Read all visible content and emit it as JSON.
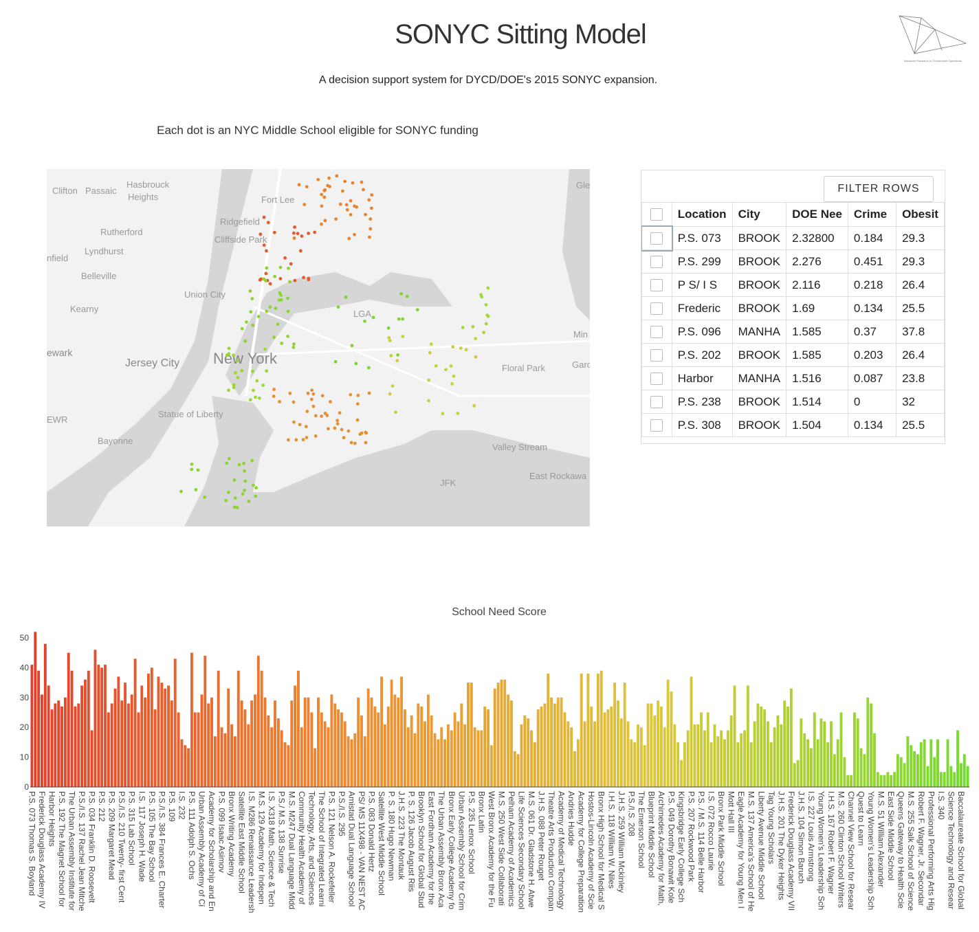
{
  "header": {
    "title": "SONYC Sitting Model",
    "subtitle": "A decision support system for DYCD/DOE's 2015 SONYC expansion.",
    "logo_caption": "Advanced Research in Government Operations"
  },
  "map": {
    "caption": "Each dot is an NYC Middle School eligible for SONYC funding",
    "labels": [
      "Clifton",
      "Passaic",
      "Hasbrouck",
      "Heights",
      "Fort Lee",
      "Ridgefield",
      "Rutherford",
      "Cliffside Park",
      "Lyndhurst",
      "nfield",
      "Belleville",
      "Union City",
      "Kearny",
      "LGA",
      "ewark",
      "Jersey City",
      "New York",
      "Floral Park",
      "Statue of Liberty",
      "Bayonne",
      "Valley Stream",
      "JFK",
      "East Rockawa",
      "EWR",
      "Gle",
      "Min",
      "Garc"
    ]
  },
  "table": {
    "button": "FILTER ROWS",
    "columns": [
      "Location",
      "City",
      "DOE Nee",
      "Crime",
      "Obesit"
    ],
    "rows": [
      [
        "P.S. 073",
        "BROOK",
        "2.32800",
        "0.184",
        "29.3"
      ],
      [
        "P.S. 299",
        "BROOK",
        "2.276",
        "0.451",
        "29.3"
      ],
      [
        "P S/ I S",
        "BROOK",
        "2.116",
        "0.218",
        "26.4"
      ],
      [
        "Frederic",
        "BROOK",
        "1.69",
        "0.134",
        "25.5"
      ],
      [
        "P.S. 096",
        "MANHA",
        "1.585",
        "0.37",
        "37.8"
      ],
      [
        "P.S. 202",
        "BROOK",
        "1.585",
        "0.203",
        "26.4"
      ],
      [
        "Harbor",
        "MANHA",
        "1.516",
        "0.087",
        "23.8"
      ],
      [
        "P.S. 238",
        "BROOK",
        "1.514",
        "0",
        "32"
      ],
      [
        "P.S. 308",
        "BROOK",
        "1.504",
        "0.134",
        "25.5"
      ]
    ]
  },
  "chart_data": {
    "type": "bar",
    "title": "School Need Score",
    "ylim": [
      0,
      53
    ],
    "yticks": [
      0,
      10,
      20,
      30,
      40,
      50
    ],
    "grid": false,
    "colorscale": [
      "#e3402b",
      "#ef8a30",
      "#dcc73b",
      "#72dc2c"
    ],
    "categories": [
      "P.S. 073 Thomas S. Boyland",
      null,
      null,
      "Frederick Douglass Academy IV",
      null,
      null,
      "Harbor Heights",
      null,
      null,
      "P.S. 192 The Magnet School for",
      null,
      null,
      "The Urban Assembly Institute for",
      null,
      null,
      "P.S./I.S. 137 Rachel Jean Mitche",
      null,
      null,
      "P.S. 034 Franklin D. Roosevelt",
      null,
      null,
      "P.S. 212",
      null,
      null,
      "P.S. 209 Margaret Mead",
      null,
      null,
      "P.S./I.S. 210 Twenty- first Cent",
      null,
      null,
      "P.S. 315 Lab School",
      null,
      null,
      "I.S. 117 Joseph H. Wade",
      null,
      null,
      "P.S. 105 The Bay School",
      null,
      null,
      "P.S./I.S. 384 Frances E. Charter",
      null,
      null,
      "P.S. 109",
      null,
      null,
      "I.S. 232",
      null,
      null,
      "P.S. 111 Adolph S. Ochs",
      null,
      null,
      "Urban Assembly Academy of Ci",
      null,
      null,
      "Academy for Scholarship and En",
      null,
      null,
      "P.S. 099 Isaac Asimov",
      null,
      null,
      "Bronx Writing Academy",
      null,
      null,
      "Satellite East Middle School",
      null,
      null,
      "I.S. M286 Renaissance Leadersh",
      null,
      null,
      "M.S. 129 Academy for Indepen",
      null,
      null,
      "I.S. X318 Math, Science & Tech",
      null,
      null,
      "P.S./ M.S. 138 Sunrise",
      null,
      null,
      "M.S. M247 Dual Language Midd",
      null,
      null,
      "Community Health Academy of",
      null,
      null,
      "Technology, Arts, and Sciences",
      null,
      null,
      "The School of Integrated Learni",
      null,
      null,
      "P.S. 121 Nelson A. Rockefeller",
      null,
      null,
      "P.S./I.S. 295",
      null,
      null,
      "Amistad Dual Language School",
      null,
      null,
      "PS/ MS 11X498 - VAN NEST AC",
      null,
      null,
      "P.S. 083 Donald Hertz",
      null,
      null,
      "Satellite West Middle School",
      null,
      null,
      "P. S. 180 Hugo Newman",
      null,
      null,
      "J.H.S. 223 The Montauk",
      null,
      null,
      "P. S. 126 Jacob August Riis",
      null,
      null,
      "Brooklyn School for Global Stud",
      null,
      null,
      "East Fordham Academy for the",
      null,
      null,
      "The Urban Assembly Bronx Aca",
      null,
      null,
      "Bronx Early College Academy fo",
      null,
      null,
      "Urban Assembly School for Crim",
      null,
      null,
      "P.S. 235 Lenox School",
      null,
      null,
      "Bronx Latin",
      null,
      null,
      "West Bronx Academy for the Fu",
      null,
      null,
      "M.S. 250 West Side Collaborati",
      null,
      null,
      "Pelham Academy of Academics",
      null,
      null,
      "Life Sciences Secondary School",
      null,
      null,
      "M.S. 061 Dr. Gladstone H. Atwe",
      null,
      null,
      "J.H.S. 088 Peter Rouget",
      null,
      null,
      "Theatre Arts Production Compan",
      null,
      null,
      "Academy of Medical Technology",
      null,
      null,
      "Andries Hudde",
      null,
      null,
      "Academy for College Preparation",
      null,
      null,
      "Hostos-Lincoln Academy of Scie",
      null,
      null,
      "Bronx High School for Medical S",
      null,
      null,
      "I.H.S. 118 William W. Niles",
      null,
      null,
      "J.H.S. 259 William Mckinley",
      null,
      null,
      "P.S./I.S. 208",
      null,
      null,
      "The Emerson School",
      null,
      null,
      "Blueprint Middle School",
      null,
      null,
      "Archimedes Academy for Math,",
      null,
      null,
      "P.S. 049 Dorothy Bonawit Kole",
      null,
      null,
      "Kingsbridge Early College Sch",
      null,
      null,
      "P.S. 207 Rockwood Park",
      null,
      null,
      "P.S. / M.S. 114 Belle Harbor",
      null,
      null,
      "I.S. 072 Rocco Laurie",
      null,
      null,
      "Bronx Park Middle School",
      null,
      null,
      "Mott Hall III",
      null,
      null,
      "Eagle Academy for Young Men I",
      null,
      null,
      "M.S. 137 America's School of He",
      null,
      null,
      "Liberty Avenue Middle School",
      null,
      null,
      "Tag Young Scholars",
      null,
      null,
      "J.H.S. 201 The Dyker Heights",
      null,
      null,
      "Frederick Douglass Academy VII",
      null,
      null,
      "J.H.S. 104 Simon Baruch",
      null,
      null,
      "I.S. 227 Louis Armstrong",
      null,
      null,
      "Young Women's Leadership Sch",
      null,
      null,
      "I.H.S. 167 Robert F. Wagner",
      null,
      null,
      "M.S. 260 Clinton School Writers",
      null,
      null,
      "Channel View School for Resear",
      null,
      null,
      "Quest to Learn",
      null,
      null,
      "Young Women's Leadership Sch",
      null,
      null,
      "M.S. 51 William Alexander",
      null,
      null,
      "East Side Middle School",
      null,
      null,
      "Queens Gateway to Health Scie",
      null,
      null,
      "M.S. 255 Salk School of Science",
      null,
      null,
      "Robert F. Wagner, Jr. Secondar",
      null,
      null,
      "Professional Performing Arts Hig",
      null,
      null,
      "I.S. 340",
      null,
      null,
      "Science Technology and Resear",
      null,
      null,
      "Baccalaureate School for Global",
      null,
      null
    ],
    "values": [
      41,
      52,
      39,
      31,
      48,
      34,
      26,
      28,
      29,
      27,
      30,
      45,
      39,
      27,
      28,
      34,
      36,
      39,
      19,
      46,
      41,
      40,
      41,
      25,
      28,
      33,
      37,
      29,
      35,
      28,
      31,
      43,
      25,
      34,
      30,
      38,
      40,
      26,
      37,
      35,
      33,
      34,
      29,
      43,
      25,
      16,
      14,
      13,
      45,
      25,
      25,
      31,
      44,
      28,
      30,
      17,
      39,
      20,
      18,
      33,
      21,
      17,
      39,
      29,
      26,
      21,
      29,
      31,
      44,
      39,
      30,
      24,
      20,
      29,
      23,
      19,
      15,
      14,
      29,
      34,
      39,
      20,
      30,
      30,
      25,
      13,
      30,
      25,
      22,
      20,
      31,
      28,
      26,
      25,
      22,
      17,
      16,
      18,
      30,
      24,
      17,
      33,
      30,
      27,
      25,
      37,
      21,
      27,
      36,
      31,
      30,
      37,
      26,
      20,
      24,
      18,
      28,
      27,
      22,
      31,
      24,
      18,
      16,
      20,
      16,
      21,
      19,
      25,
      22,
      28,
      21,
      35,
      35,
      20,
      19,
      19,
      27,
      26,
      14,
      33,
      35,
      36,
      36,
      31,
      29,
      12,
      11,
      21,
      24,
      23,
      19,
      15,
      26,
      27,
      28,
      38,
      30,
      28,
      30,
      30,
      25,
      22,
      20,
      12,
      16,
      38,
      22,
      38,
      27,
      22,
      38,
      39,
      25,
      26,
      27,
      35,
      29,
      23,
      35,
      22,
      16,
      15,
      21,
      20,
      14,
      28,
      28,
      24,
      29,
      27,
      20,
      36,
      32,
      21,
      15,
      9,
      15,
      19,
      37,
      21,
      21,
      25,
      19,
      25,
      15,
      21,
      17,
      19,
      16,
      19,
      24,
      34,
      15,
      18,
      19,
      34,
      15,
      22,
      28,
      27,
      26,
      22,
      15,
      20,
      24,
      21,
      29,
      27,
      33,
      8,
      9,
      23,
      18,
      16,
      13,
      25,
      16,
      23,
      22,
      15,
      22,
      11,
      16,
      25,
      10,
      4,
      4,
      25,
      23,
      13,
      11,
      30,
      28,
      18,
      5,
      4,
      4,
      5,
      4,
      5,
      11,
      10,
      8,
      17,
      14,
      12,
      11,
      15,
      16,
      7,
      16,
      10,
      16,
      5,
      5,
      16,
      7,
      5,
      19,
      8,
      11,
      7
    ]
  }
}
